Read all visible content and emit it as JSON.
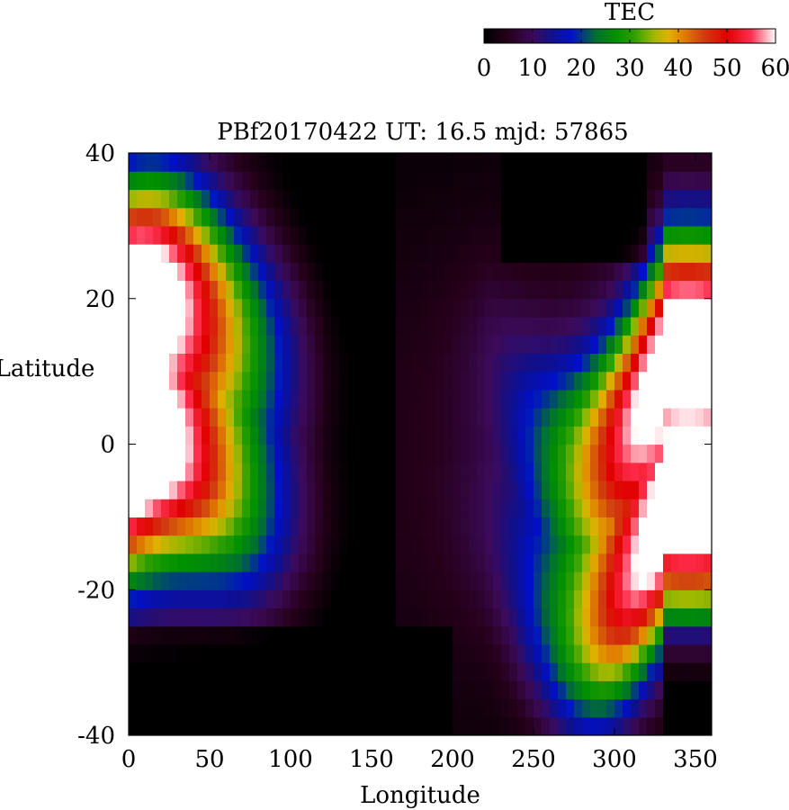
{
  "chart_data": {
    "type": "heatmap",
    "title": "PBf20170422  UT: 16.5  mjd: 57865",
    "xlabel": "Longitude",
    "ylabel": "Latitude",
    "xlim": [
      0,
      360
    ],
    "ylim": [
      -40,
      40
    ],
    "x_ticks": [
      "0",
      "50",
      "100",
      "150",
      "200",
      "250",
      "300",
      "350"
    ],
    "y_ticks": [
      "40",
      "20",
      "0",
      "-20",
      "-40"
    ],
    "colorbar": {
      "label": "TEC",
      "range": [
        0,
        60
      ],
      "ticks": [
        "0",
        "10",
        "20",
        "30",
        "40",
        "50",
        "60"
      ],
      "stops": [
        {
          "value": 0,
          "color": "#000000"
        },
        {
          "value": 5,
          "color": "#26001a"
        },
        {
          "value": 10,
          "color": "#3c0a5a"
        },
        {
          "value": 14,
          "color": "#10108c"
        },
        {
          "value": 18,
          "color": "#0010c8"
        },
        {
          "value": 23,
          "color": "#007030"
        },
        {
          "value": 27,
          "color": "#009000"
        },
        {
          "value": 31,
          "color": "#30a000"
        },
        {
          "value": 35,
          "color": "#a0b800"
        },
        {
          "value": 38,
          "color": "#e0b000"
        },
        {
          "value": 41,
          "color": "#e08000"
        },
        {
          "value": 45,
          "color": "#d04010"
        },
        {
          "value": 50,
          "color": "#e00000"
        },
        {
          "value": 55,
          "color": "#ff3050"
        },
        {
          "value": 60,
          "color": "#ffffff"
        }
      ]
    },
    "grid": {
      "lon_step": 5,
      "lat_step": 2.5,
      "description": "TEC field modeled on a 5° x 2.5° grid"
    }
  }
}
